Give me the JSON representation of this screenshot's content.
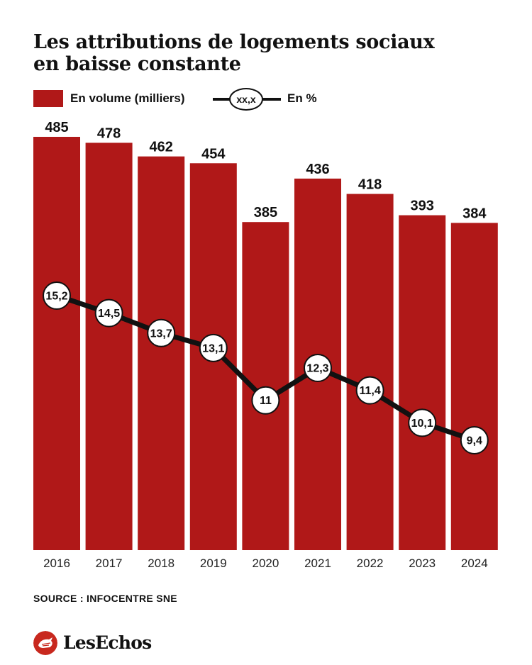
{
  "chart_data": {
    "type": "bar",
    "title": "Les attributions de logements sociaux en baisse constante",
    "title_lines": [
      "Les attributions de logements sociaux",
      "en baisse constante"
    ],
    "categories": [
      "2016",
      "2017",
      "2018",
      "2019",
      "2020",
      "2021",
      "2022",
      "2023",
      "2024"
    ],
    "series": [
      {
        "name": "En volume (milliers)",
        "kind": "bar",
        "values": [
          485,
          478,
          462,
          454,
          385,
          436,
          418,
          393,
          384
        ],
        "labels": [
          "485",
          "478",
          "462",
          "454",
          "385",
          "436",
          "418",
          "393",
          "384"
        ],
        "color": "#b01818"
      },
      {
        "name": "En %",
        "kind": "line",
        "values": [
          15.2,
          14.5,
          13.7,
          13.1,
          11,
          12.3,
          11.4,
          10.1,
          9.4
        ],
        "labels": [
          "15,2",
          "14,5",
          "13,7",
          "13,1",
          "11",
          "12,3",
          "11,4",
          "10,1",
          "9,4"
        ],
        "color": "#111111"
      }
    ],
    "bar_ylim": [
      0,
      485
    ],
    "line_ylim": [
      9.4,
      15.2
    ],
    "legend": {
      "position": "top-left",
      "bar_label": "En volume (milliers)",
      "line_marker_text": "xx,x",
      "line_label": "En %"
    },
    "grid": false
  },
  "source": "SOURCE : INFOCENTRE SNE",
  "logo": {
    "text": "LesEchos",
    "icon": "les-echos-rooster-icon",
    "color": "#c8281e"
  },
  "colors": {
    "bar": "#b01818",
    "line": "#111111",
    "marker_fill": "#ffffff",
    "text": "#111111"
  }
}
